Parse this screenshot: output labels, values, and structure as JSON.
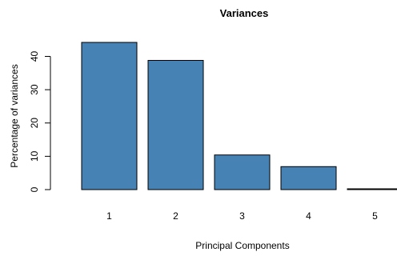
{
  "chart_data": {
    "type": "bar",
    "title": "Variances",
    "xlabel": "Principal Components",
    "ylabel": "Percentage of variances",
    "categories": [
      "1",
      "2",
      "3",
      "4",
      "5"
    ],
    "values": [
      44.2,
      38.8,
      10.4,
      6.9,
      0.1
    ],
    "ylim": [
      0,
      44.2
    ],
    "yticks": [
      "0",
      "10",
      "20",
      "30",
      "40"
    ],
    "bar_color": "#4682B4",
    "grid": false,
    "legend": "none"
  }
}
